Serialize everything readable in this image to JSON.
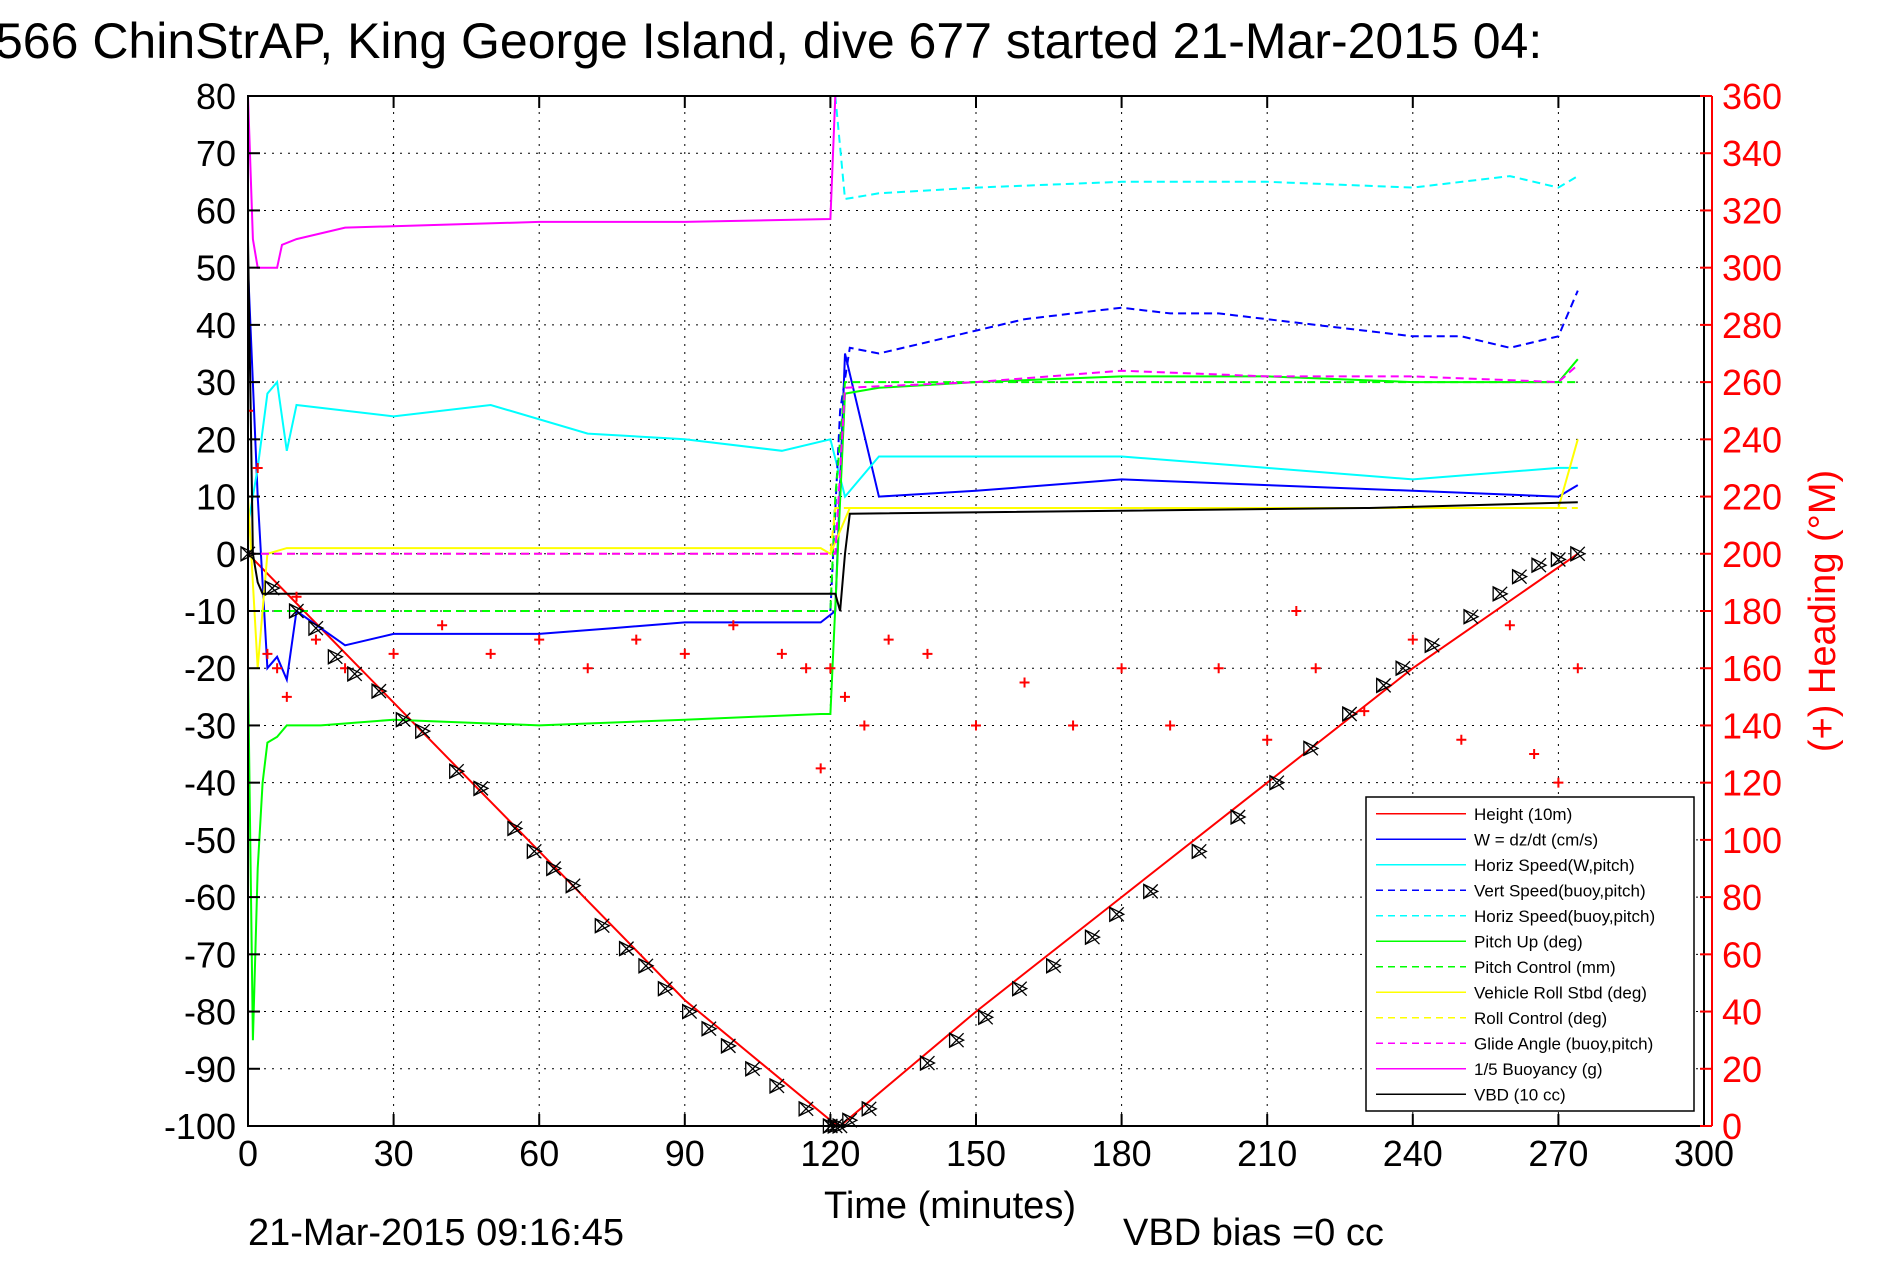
{
  "chart_data": {
    "type": "line",
    "title": "566 ChinStrAP, King George Island, dive 677 started 21-Mar-2015 04:",
    "xlabel": "Time (minutes)",
    "ylabel_right": "(+) Heading (°M)",
    "xlim": [
      0,
      300
    ],
    "ylim": [
      -100,
      80
    ],
    "ylim_right": [
      0,
      360
    ],
    "xticks": [
      "0",
      "30",
      "60",
      "90",
      "120",
      "150",
      "180",
      "210",
      "240",
      "270",
      "300"
    ],
    "yticks_left": [
      "80",
      "70",
      "60",
      "50",
      "40",
      "30",
      "20",
      "10",
      "0",
      "-10",
      "-20",
      "-30",
      "-40",
      "-50",
      "-60",
      "-70",
      "-80",
      "-90",
      "-100"
    ],
    "yticks_right": [
      "360",
      "340",
      "320",
      "300",
      "280",
      "260",
      "240",
      "220",
      "200",
      "180",
      "160",
      "140",
      "120",
      "100",
      "80",
      "60",
      "40",
      "20",
      "0"
    ],
    "grid": true,
    "legend_position": "bottom-right",
    "series": [
      {
        "name": "Height (10m)",
        "color": "#ff0000",
        "style": "solid",
        "x": [
          0,
          30,
          60,
          90,
          120,
          122,
          150,
          180,
          210,
          240,
          274
        ],
        "y": [
          0,
          -26,
          -52,
          -78,
          -99,
          -100,
          -80,
          -60,
          -40,
          -20,
          0
        ]
      },
      {
        "name": "W = dz/dt (cm/s)",
        "color": "#0000ff",
        "style": "solid",
        "x": [
          0,
          2,
          4,
          6,
          8,
          10,
          20,
          30,
          45,
          60,
          75,
          90,
          105,
          118,
          121,
          123,
          130,
          150,
          180,
          210,
          240,
          270,
          274
        ],
        "y": [
          50,
          10,
          -20,
          -18,
          -22,
          -10,
          -16,
          -14,
          -14,
          -14,
          -13,
          -12,
          -12,
          -12,
          -10,
          35,
          10,
          11,
          13,
          12,
          11,
          10,
          12
        ]
      },
      {
        "name": "Horiz Speed(W,pitch)",
        "color": "#00ffff",
        "style": "solid",
        "x": [
          0,
          2,
          4,
          6,
          8,
          10,
          30,
          50,
          70,
          90,
          110,
          120,
          123,
          130,
          150,
          180,
          210,
          240,
          270,
          274
        ],
        "y": [
          5,
          15,
          28,
          30,
          18,
          26,
          24,
          26,
          21,
          20,
          18,
          20,
          10,
          17,
          17,
          17,
          15,
          13,
          15,
          15
        ]
      },
      {
        "name": "Vert Speed(buoy,pitch)",
        "color": "#0000ff",
        "style": "dashed",
        "x": [
          120,
          122,
          124,
          130,
          140,
          150,
          160,
          170,
          180,
          190,
          200,
          210,
          220,
          230,
          240,
          250,
          260,
          270,
          274
        ],
        "y": [
          -10,
          25,
          36,
          35,
          37,
          39,
          41,
          42,
          43,
          42,
          42,
          41,
          40,
          39,
          38,
          38,
          36,
          38,
          46
        ]
      },
      {
        "name": "Horiz Speed(buoy,pitch)",
        "color": "#00ffff",
        "style": "dashed",
        "x": [
          121,
          123,
          130,
          150,
          180,
          210,
          240,
          260,
          270,
          274
        ],
        "y": [
          80,
          62,
          63,
          64,
          65,
          65,
          64,
          66,
          64,
          66
        ]
      },
      {
        "name": "Pitch Up (deg)",
        "color": "#00ff00",
        "style": "solid",
        "x": [
          0,
          1,
          2,
          3,
          4,
          6,
          8,
          15,
          30,
          60,
          90,
          118,
          120,
          123,
          130,
          150,
          180,
          210,
          240,
          270,
          274
        ],
        "y": [
          -20,
          -85,
          -55,
          -40,
          -33,
          -32,
          -30,
          -30,
          -29,
          -30,
          -29,
          -28,
          -28,
          28,
          29,
          30,
          31,
          31,
          30,
          30,
          34
        ]
      },
      {
        "name": "Pitch Control (mm)",
        "color": "#00ff00",
        "style": "dashed",
        "x": [
          0,
          10,
          60,
          120,
          121,
          123,
          274
        ],
        "y": [
          -10,
          -10,
          -10,
          -10,
          10,
          30,
          30
        ]
      },
      {
        "name": "Vehicle Roll Stbd (deg)",
        "color": "#ffff00",
        "style": "solid",
        "x": [
          0,
          2,
          4,
          8,
          30,
          60,
          90,
          118,
          120,
          124,
          150,
          180,
          210,
          240,
          270,
          274
        ],
        "y": [
          10,
          -20,
          0,
          1,
          1,
          1,
          1,
          1,
          0,
          8,
          8,
          8,
          8,
          8,
          8,
          20
        ]
      },
      {
        "name": "Roll Control (deg)",
        "color": "#ffff00",
        "style": "dashed",
        "x": [
          0,
          120,
          121,
          274
        ],
        "y": [
          0,
          0,
          8,
          8
        ]
      },
      {
        "name": "Glide Angle (buoy,pitch)",
        "color": "#ff00ff",
        "style": "dashed",
        "x": [
          0,
          120,
          121,
          123,
          150,
          180,
          210,
          240,
          270,
          274
        ],
        "y": [
          0,
          0,
          0,
          29,
          30,
          32,
          31,
          31,
          30,
          33
        ]
      },
      {
        "name": "1/5 Buoyancy (g)",
        "color": "#ff00ff",
        "style": "solid",
        "x": [
          0,
          1,
          2,
          6,
          7,
          10,
          20,
          40,
          60,
          90,
          120,
          121
        ],
        "y": [
          80,
          55,
          50,
          50,
          54,
          55,
          57,
          57.5,
          58,
          58,
          58.5,
          80
        ]
      },
      {
        "name": "VBD (10 cc)",
        "color": "#000000",
        "style": "solid",
        "x": [
          0,
          1,
          2,
          3,
          4,
          5,
          121,
          122,
          123,
          124,
          230,
          231,
          274
        ],
        "y": [
          55,
          0,
          -5,
          -7,
          -7,
          -7,
          -7,
          -10,
          0,
          7,
          8,
          8,
          9
        ]
      }
    ],
    "heading": {
      "name": "Heading",
      "color": "#ff0000",
      "marker": "+",
      "axis": "right",
      "x": [
        0,
        2,
        4,
        6,
        8,
        10,
        14,
        20,
        30,
        40,
        50,
        60,
        70,
        80,
        90,
        100,
        110,
        115,
        118,
        120,
        123,
        127,
        132,
        140,
        150,
        160,
        170,
        180,
        190,
        200,
        210,
        216,
        220,
        230,
        240,
        250,
        260,
        265,
        270,
        274
      ],
      "y": [
        250,
        230,
        165,
        160,
        150,
        185,
        170,
        160,
        165,
        175,
        165,
        170,
        160,
        170,
        165,
        175,
        165,
        160,
        125,
        160,
        150,
        140,
        170,
        165,
        140,
        155,
        140,
        160,
        140,
        160,
        135,
        180,
        160,
        145,
        170,
        135,
        175,
        130,
        120,
        160
      ]
    },
    "markers": {
      "name": "Depth markers",
      "color": "#000000",
      "marker": "triangle-cross",
      "x": [
        0,
        5,
        10,
        14,
        18,
        22,
        27,
        32,
        36,
        43,
        48,
        55,
        59,
        63,
        67,
        73,
        78,
        82,
        86,
        91,
        95,
        99,
        104,
        109,
        115,
        120,
        121,
        122,
        124,
        128,
        140,
        146,
        152,
        159,
        166,
        174,
        179,
        186,
        196,
        204,
        212,
        219,
        227,
        234,
        238,
        244,
        252,
        258,
        262,
        266,
        270,
        274
      ],
      "y": [
        0,
        -6,
        -10,
        -13,
        -18,
        -21,
        -24,
        -29,
        -31,
        -38,
        -41,
        -48,
        -52,
        -55,
        -58,
        -65,
        -69,
        -72,
        -76,
        -80,
        -83,
        -86,
        -90,
        -93,
        -97,
        -100,
        -100,
        -100,
        -99,
        -97,
        -89,
        -85,
        -81,
        -76,
        -72,
        -67,
        -63,
        -59,
        -52,
        -46,
        -40,
        -34,
        -28,
        -23,
        -20,
        -16,
        -11,
        -7,
        -4,
        -2,
        -1,
        0
      ]
    }
  },
  "legend": [
    {
      "label": "Height (10m)",
      "color": "#ff0000",
      "dash": "solid"
    },
    {
      "label": "W = dz/dt (cm/s)",
      "color": "#0000ff",
      "dash": "solid"
    },
    {
      "label": "Horiz Speed(W,pitch)",
      "color": "#00ffff",
      "dash": "solid"
    },
    {
      "label": "Vert Speed(buoy,pitch)",
      "color": "#0000ff",
      "dash": "dashed"
    },
    {
      "label": "Horiz Speed(buoy,pitch)",
      "color": "#00ffff",
      "dash": "dashed"
    },
    {
      "label": "Pitch Up (deg)",
      "color": "#00ff00",
      "dash": "solid"
    },
    {
      "label": "Pitch Control (mm)",
      "color": "#00ff00",
      "dash": "dashed"
    },
    {
      "label": "Vehicle Roll Stbd (deg)",
      "color": "#ffff00",
      "dash": "solid"
    },
    {
      "label": "Roll Control (deg)",
      "color": "#ffff00",
      "dash": "dashed"
    },
    {
      "label": "Glide Angle (buoy,pitch)",
      "color": "#ff00ff",
      "dash": "dashed"
    },
    {
      "label": "1/5 Buoyancy (g)",
      "color": "#ff00ff",
      "dash": "solid"
    },
    {
      "label": "VBD (10 cc)",
      "color": "#000000",
      "dash": "solid"
    }
  ],
  "footer": {
    "timestamp": "21-Mar-2015 09:16:45",
    "vbd_bias": "VBD bias =0 cc"
  }
}
